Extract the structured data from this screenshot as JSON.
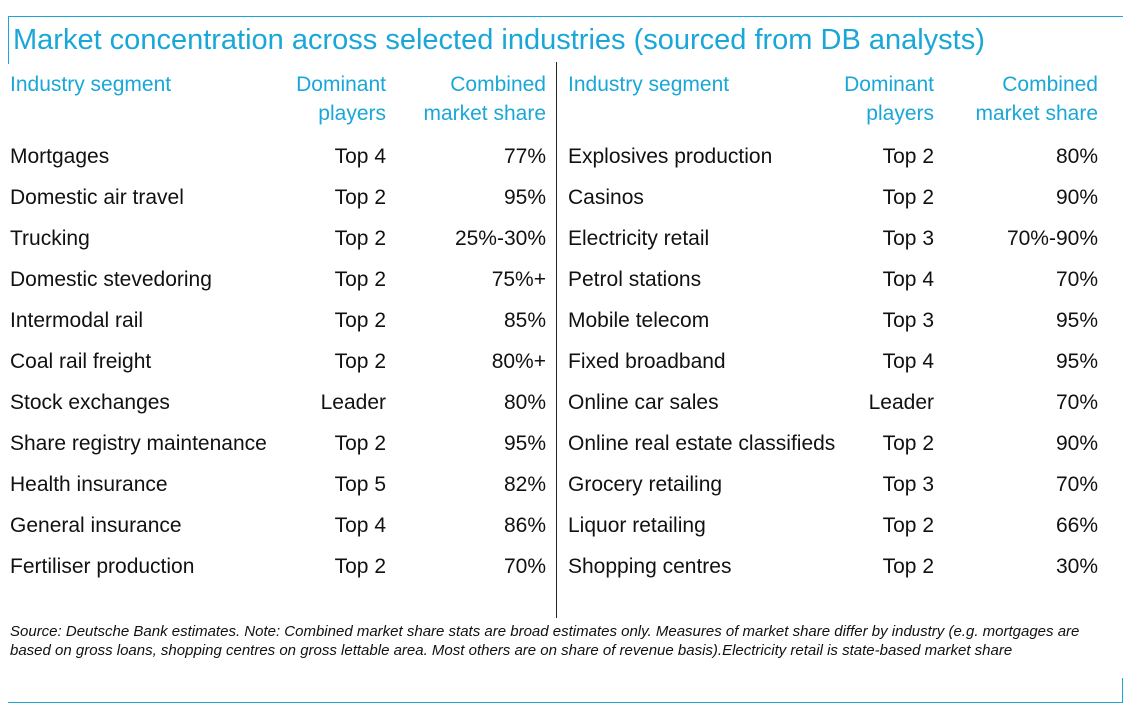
{
  "title": "Market concentration across selected industries (sourced from DB analysts)",
  "headers": {
    "segment": "Industry segment",
    "players_line1": "Dominant",
    "players_line2": "players",
    "share_line1": "Combined",
    "share_line2": "market share"
  },
  "left_rows": [
    {
      "segment": "Mortgages",
      "players": "Top 4",
      "share": "77%"
    },
    {
      "segment": "Domestic air travel",
      "players": "Top 2",
      "share": "95%"
    },
    {
      "segment": "Trucking",
      "players": "Top 2",
      "share": "25%-30%"
    },
    {
      "segment": "Domestic stevedoring",
      "players": "Top 2",
      "share": "75%+"
    },
    {
      "segment": "Intermodal rail",
      "players": "Top 2",
      "share": "85%"
    },
    {
      "segment": "Coal rail freight",
      "players": "Top 2",
      "share": "80%+"
    },
    {
      "segment": "Stock exchanges",
      "players": "Leader",
      "share": "80%"
    },
    {
      "segment": "Share registry maintenance",
      "players": "Top 2",
      "share": "95%"
    },
    {
      "segment": "Health insurance",
      "players": "Top 5",
      "share": "82%"
    },
    {
      "segment": "General insurance",
      "players": "Top 4",
      "share": "86%"
    },
    {
      "segment": "Fertiliser production",
      "players": "Top 2",
      "share": "70%"
    }
  ],
  "right_rows": [
    {
      "segment": "Explosives production",
      "players": "Top 2",
      "share": "80%"
    },
    {
      "segment": "Casinos",
      "players": "Top 2",
      "share": "90%"
    },
    {
      "segment": "Electricity retail",
      "players": "Top 3",
      "share": "70%-90%"
    },
    {
      "segment": "Petrol stations",
      "players": "Top 4",
      "share": "70%"
    },
    {
      "segment": "Mobile telecom",
      "players": "Top 3",
      "share": "95%"
    },
    {
      "segment": "Fixed broadband",
      "players": "Top 4",
      "share": "95%"
    },
    {
      "segment": "Online car sales",
      "players": "Leader",
      "share": "70%"
    },
    {
      "segment": "Online real estate classifieds",
      "players": "Top 2",
      "share": "90%"
    },
    {
      "segment": "Grocery retailing",
      "players": "Top 3",
      "share": "70%"
    },
    {
      "segment": "Liquor retailing",
      "players": "Top 2",
      "share": "66%"
    },
    {
      "segment": "Shopping centres",
      "players": "Top 2",
      "share": "30%"
    }
  ],
  "footer": "Source: Deutsche Bank estimates. Note: Combined market share stats are broad estimates only. Measures of market share differ by industry (e.g. mortgages are based on gross loans, shopping centres on gross lettable area. Most others are on share of revenue basis).Electricity retail is state-based market share",
  "colors": {
    "accent": "#1aa7d8",
    "text": "#111111"
  }
}
